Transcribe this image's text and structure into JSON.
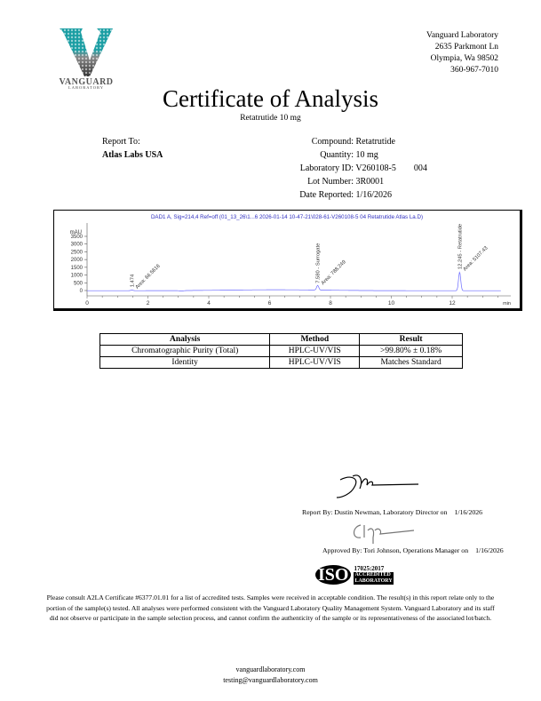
{
  "logo": {
    "name": "VANGUARD",
    "sub": "LABORATORY",
    "colors": {
      "teal": "#1a9ea3",
      "gray": "#6b6b6b"
    }
  },
  "address": [
    "Vanguard Laboratory",
    "2635 Parkmont Ln",
    "Olympia, Wa 98502",
    "360-967-7010"
  ],
  "title": "Certificate of Analysis",
  "subtitle": "Retatrutide 10 mg",
  "report_to": {
    "label": "Report To:",
    "client": "Atlas Labs USA"
  },
  "details": [
    {
      "label": "Compound:",
      "value": "Retatrutide"
    },
    {
      "label": "Quantity:",
      "value": "10 mg"
    },
    {
      "label": "Laboratory ID:",
      "value": "V260108-5",
      "extra": "004"
    },
    {
      "label": "Lot Number:",
      "value": "3R0001"
    },
    {
      "label": "Date Reported:",
      "value": "1/16/2026"
    }
  ],
  "chart_data": {
    "type": "line",
    "title": "DAD1 A, Sig=214,4 Ref=off (01_13_26\\1...6 2026-01-14 10-47-21\\028-61-V260108-5 04 Retatrutide Atlas La.D)",
    "ylabel": "mAU",
    "xlabel": "min",
    "xlim": [
      0,
      13.8
    ],
    "ylim": [
      -150,
      3700
    ],
    "xticks": [
      "0",
      "2",
      "4",
      "6",
      "8",
      "10",
      "12"
    ],
    "yticks": [
      "0",
      "500",
      "1000",
      "1500",
      "2000",
      "2500",
      "3000",
      "3500"
    ],
    "line_color": "#6a6aff",
    "peaks": [
      {
        "rt": 1.474,
        "height": 40,
        "label": "1.474",
        "area": "Area: 66.5616"
      },
      {
        "rt": 7.58,
        "height": 300,
        "label": "7.580 - Surrogate",
        "area": "Area: 788.249"
      },
      {
        "rt": 12.245,
        "height": 1200,
        "label": "12.245 - Retatrutide",
        "area": "Area: 5107.43"
      }
    ]
  },
  "results": {
    "headers": [
      "Analysis",
      "Method",
      "Result"
    ],
    "rows": [
      [
        "Chromatographic Purity (Total)",
        "HPLC-UV/VIS",
        ">99.80% ± 0.18%"
      ],
      [
        "Identity",
        "HPLC-UV/VIS",
        "Matches Standard"
      ]
    ]
  },
  "signoff": {
    "report_by": "Report By: Dustin Newman, Laboratory Director on",
    "report_date": "1/16/2026",
    "approved_by": "Approved By: Tori Johnson, Operations Manager on",
    "approved_date": "1/16/2026"
  },
  "iso": {
    "mark": "ISO",
    "line1": "17025:2017",
    "line2": "ACCREDITED",
    "line3": "LABORATORY"
  },
  "disclaimer": "Please consult A2LA Certificate #6377.01.01 for a list of accredited tests. Samples were received in acceptable condition. The result(s) in this report relate only to the portion of the sample(s) tested. All analyses were performed consistent with the Vanguard Laboratory Quality Management System. Vanguard Laboratory and its staff did not observe or participate in the sample selection process, and cannot confirm the authenticity of the sample or its representativeness of the associated lot/batch.",
  "contact": {
    "website": "vanguardlaboratory.com",
    "email": "testing@vanguardlaboratory.com"
  }
}
